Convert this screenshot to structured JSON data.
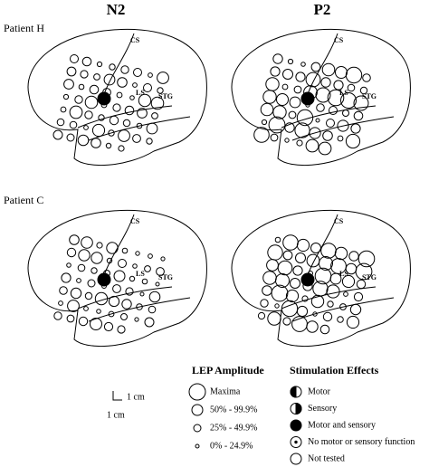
{
  "columns": [
    "N2",
    "P2"
  ],
  "patients": [
    {
      "label": "Patient H",
      "panels": [
        {
          "labels": [
            "CS",
            "LS",
            "STG"
          ]
        },
        {
          "labels": [
            "CS",
            "LS",
            "STG"
          ]
        }
      ]
    },
    {
      "label": "Patient C",
      "panels": [
        {
          "labels": [
            "CS",
            "LS",
            "STG"
          ]
        },
        {
          "labels": [
            "CS",
            "LS",
            "STG"
          ]
        }
      ]
    }
  ],
  "scale": {
    "vertical": "1 cm",
    "horizontal": "1 cm"
  },
  "legend": {
    "amplitude": {
      "title": "LEP Amplitude",
      "items": [
        "Maxima",
        "50% - 99.9%",
        "25% - 49.9%",
        "0% - 24.9%"
      ]
    },
    "effects": {
      "title": "Stimulation Effects",
      "items": [
        "Motor",
        "Sensory",
        "Motor and sensory",
        "No motor or sensory function",
        "Not tested"
      ]
    }
  }
}
